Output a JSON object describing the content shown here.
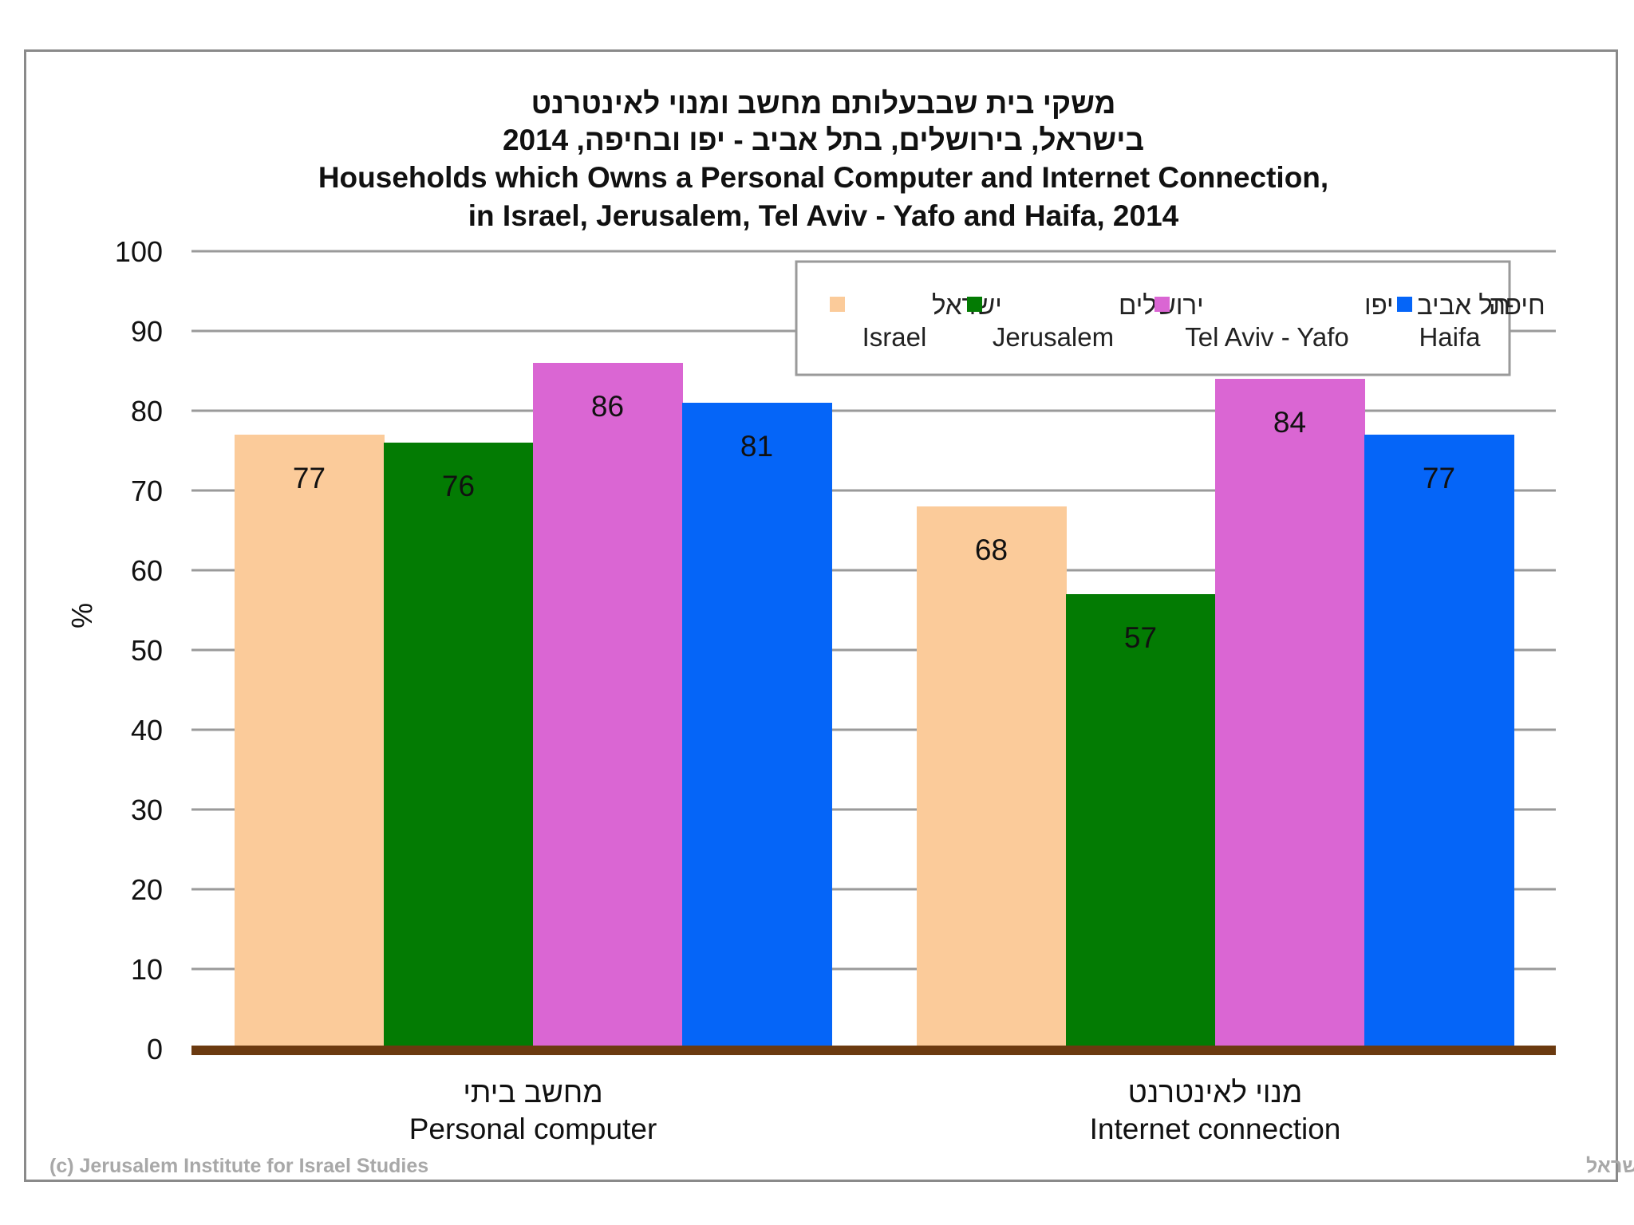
{
  "chart_data": {
    "type": "bar",
    "title": [
      "משקי בית שבבעלותם מחשב ומנוי לאינטרנט",
      "בישראל, בירושלים, בתל אביב - יפו ובחיפה, 2014",
      "Households which Owns a Personal Computer and Internet Connection,",
      "in Israel, Jerusalem, Tel Aviv - Yafo and Haifa, 2014"
    ],
    "ylabel": "%",
    "ylim": [
      0,
      100
    ],
    "yticks": [
      "0",
      "10",
      "20",
      "30",
      "40",
      "50",
      "60",
      "70",
      "80",
      "90",
      "100"
    ],
    "grid": true,
    "legend_position": "top-right",
    "categories": [
      {
        "he": "מחשב ביתי",
        "en": "Personal computer"
      },
      {
        "he": "מנוי לאינטרנט",
        "en": "Internet connection"
      }
    ],
    "series": [
      {
        "he": "ישראל",
        "name": "Israel",
        "color": "#FBCB9A",
        "values": [
          77,
          68
        ],
        "display": [
          "77",
          "68"
        ]
      },
      {
        "he": "ירושלים",
        "name": "Jerusalem",
        "color": "#037B03",
        "values": [
          76,
          57
        ],
        "display": [
          "76",
          "57"
        ]
      },
      {
        "he": "תל אביב - יפו",
        "name": "Tel Aviv - Yafo",
        "color": "#DA66D3",
        "values": [
          86,
          84
        ],
        "display": [
          "86",
          "84"
        ]
      },
      {
        "he": "חיפה",
        "name": "Haifa",
        "color": "#0565F8",
        "values": [
          81,
          77
        ],
        "display": [
          "81",
          "77"
        ]
      }
    ]
  },
  "credits": {
    "left": "(c) Jerusalem Institute for Israel Studies",
    "right": "(c) מכון ירושלים לחקר ישראל"
  },
  "colors": {
    "axis": "#6B3A10",
    "grid": "#9a9a9a",
    "frame": "#8a8a8a",
    "plot_bg": "#ffffff"
  }
}
